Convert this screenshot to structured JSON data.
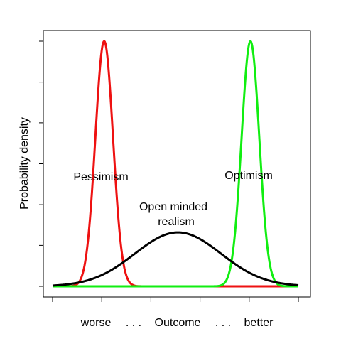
{
  "chart_data": {
    "type": "line",
    "title": "",
    "ylabel": "Probability density",
    "xaxis_text": {
      "worse": "worse",
      "dots_left": ". . .",
      "outcome": "Outcome",
      "dots_right": ". . .",
      "better": "better"
    },
    "xlim": [
      0,
      10
    ],
    "ylim": [
      0,
      1.04
    ],
    "yticks": [
      0,
      0.167,
      0.333,
      0.5,
      0.667,
      0.833,
      1.0
    ],
    "xticks": [
      0,
      2,
      4,
      6,
      8,
      10
    ],
    "grid": false,
    "series": [
      {
        "key": "pessimism",
        "name": "Pessimism",
        "color": "#ee1111",
        "mean": 2.1,
        "sd": 0.36,
        "peak": 1.0
      },
      {
        "key": "optimism",
        "name": "Optimism",
        "color": "#11ee11",
        "mean": 8.05,
        "sd": 0.36,
        "peak": 1.0
      },
      {
        "key": "realism",
        "name": "Open minded realism",
        "color": "#000000",
        "mean": 5.1,
        "sd": 1.75,
        "peak": 0.22
      }
    ],
    "annotations": {
      "pessimism": "Pessimism",
      "optimism": "Optimism",
      "realism_line1": "Open minded",
      "realism_line2": "realism"
    }
  }
}
